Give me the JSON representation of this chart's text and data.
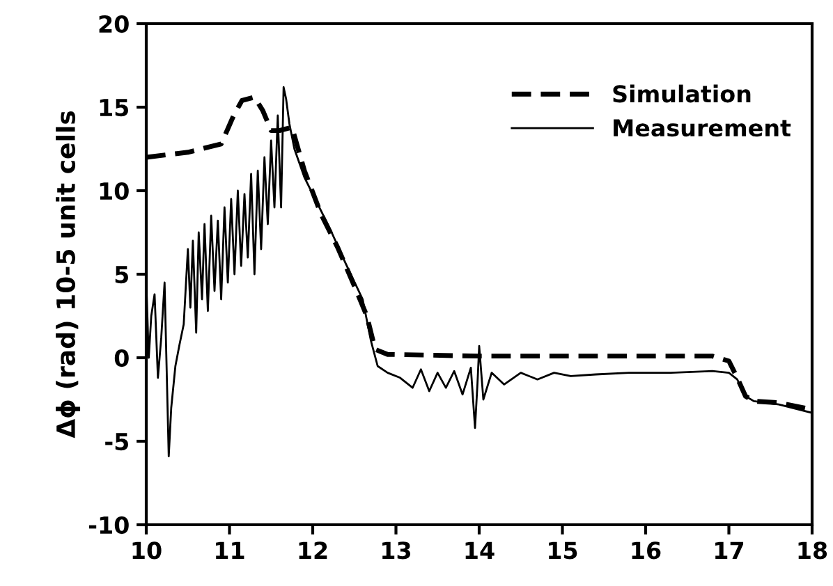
{
  "chart_data": {
    "type": "line",
    "ylabel": "Δϕ (rad) 10-5 unit cells",
    "xlim": [
      10,
      18
    ],
    "ylim": [
      -10,
      20
    ],
    "xticks": [
      10,
      11,
      12,
      13,
      14,
      15,
      16,
      17,
      18
    ],
    "yticks": [
      -10,
      -5,
      0,
      5,
      10,
      15,
      20
    ],
    "grid": false,
    "legend": "top right",
    "marker": "none",
    "series": [
      {
        "name": "Simulation",
        "color": "#000000",
        "line_style": "dashed",
        "x": [
          10,
          10.5,
          10.9,
          11.05,
          11.15,
          11.3,
          11.4,
          11.5,
          11.6,
          11.75,
          11.9,
          12.1,
          12.3,
          12.5,
          12.65,
          12.75,
          12.9,
          14,
          16,
          16.8,
          17.0,
          17.1,
          17.2,
          17.3,
          17.6,
          18
        ],
        "values": [
          12,
          12.3,
          12.8,
          14.5,
          15.4,
          15.6,
          14.8,
          13.6,
          13.6,
          13.8,
          11.2,
          8.6,
          6.6,
          4.3,
          2.5,
          0.5,
          0.2,
          0.1,
          0.1,
          0.1,
          -0.2,
          -1.2,
          -2.3,
          -2.6,
          -2.7,
          -3.1
        ]
      },
      {
        "name": "Measurement",
        "color": "#000000",
        "line_style": "solid",
        "x": [
          10,
          10.03,
          10.06,
          10.1,
          10.14,
          10.18,
          10.22,
          10.27,
          10.3,
          10.35,
          10.4,
          10.45,
          10.5,
          10.53,
          10.56,
          10.6,
          10.63,
          10.67,
          10.7,
          10.74,
          10.78,
          10.82,
          10.86,
          10.9,
          10.94,
          10.98,
          11.02,
          11.06,
          11.1,
          11.14,
          11.18,
          11.22,
          11.26,
          11.3,
          11.34,
          11.38,
          11.42,
          11.46,
          11.5,
          11.54,
          11.58,
          11.62,
          11.65,
          11.68,
          11.72,
          11.78,
          11.9,
          12.05,
          12.2,
          12.4,
          12.6,
          12.7,
          12.78,
          12.9,
          13.05,
          13.2,
          13.3,
          13.4,
          13.5,
          13.6,
          13.7,
          13.8,
          13.9,
          13.95,
          13.98,
          14.0,
          14.05,
          14.15,
          14.3,
          14.5,
          14.7,
          14.9,
          15.1,
          15.4,
          15.8,
          16.3,
          16.8,
          17.0,
          17.1,
          17.2,
          17.3,
          17.6,
          18
        ],
        "values": [
          4.5,
          0,
          2.5,
          3.8,
          -1.2,
          1.2,
          4.5,
          -5.9,
          -3,
          -0.5,
          0.8,
          2,
          6.5,
          3,
          7,
          1.5,
          7.5,
          3.5,
          8,
          2.8,
          8.5,
          4,
          8.2,
          3.5,
          9,
          4.5,
          9.5,
          5,
          10,
          5.5,
          9.8,
          6,
          11,
          5,
          11.2,
          6.5,
          12,
          8,
          13,
          9,
          14.5,
          9,
          16.2,
          15.5,
          14,
          12.5,
          10.8,
          9.3,
          7.8,
          5.6,
          3.5,
          1,
          -0.5,
          -0.9,
          -1.2,
          -1.8,
          -0.7,
          -2,
          -0.9,
          -1.8,
          -0.8,
          -2.2,
          -0.6,
          -4.2,
          -1.5,
          0.7,
          -2.5,
          -0.9,
          -1.6,
          -0.9,
          -1.3,
          -0.9,
          -1.1,
          -1.0,
          -0.9,
          -0.9,
          -0.8,
          -0.9,
          -1.3,
          -2.3,
          -2.6,
          -2.8,
          -3.3
        ]
      }
    ]
  }
}
